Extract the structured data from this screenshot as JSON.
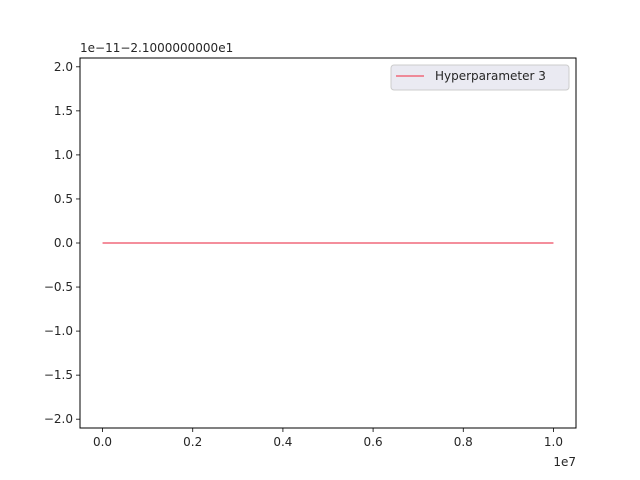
{
  "chart_data": {
    "type": "line",
    "title": "",
    "xlabel": "",
    "ylabel": "",
    "x_offset_label": "1e7",
    "y_offset_label": "1e−11−2.1000000000e1",
    "xlim": [
      -0.05,
      1.05
    ],
    "ylim": [
      -2.1,
      2.1
    ],
    "x_ticks": [
      0.0,
      0.2,
      0.4,
      0.6,
      0.8,
      1.0
    ],
    "x_tick_labels": [
      "0.0",
      "0.2",
      "0.4",
      "0.6",
      "0.8",
      "1.0"
    ],
    "y_ticks": [
      2.0,
      1.5,
      1.0,
      0.5,
      0.0,
      -0.5,
      -1.0,
      -1.5,
      -2.0
    ],
    "y_tick_labels": [
      "2.0",
      "1.5",
      "1.0",
      "0.5",
      "0.0",
      "−0.5",
      "−1.0",
      "−1.5",
      "−2.0"
    ],
    "grid": false,
    "legend_position": "top-right",
    "series": [
      {
        "name": "Hyperparameter 3",
        "color": "#f0697b",
        "x": [
          0.0,
          0.25,
          0.5,
          0.75,
          1.0
        ],
        "values": [
          0.0,
          0.0,
          0.0,
          0.0,
          0.0
        ]
      }
    ]
  }
}
